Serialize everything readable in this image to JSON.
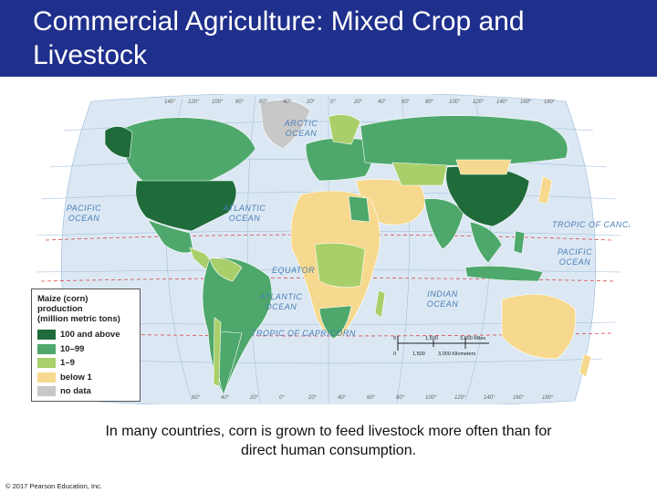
{
  "title": "Commercial Agriculture: Mixed Crop and Livestock",
  "map": {
    "ocean_labels": [
      {
        "id": "arctic",
        "lines": [
          "ARCTIC",
          "OCEAN"
        ]
      },
      {
        "id": "pacific-west",
        "lines": [
          "PACIFIC",
          "OCEAN"
        ]
      },
      {
        "id": "atlantic-north",
        "lines": [
          "ATLANTIC",
          "OCEAN"
        ]
      },
      {
        "id": "pacific-east",
        "lines": [
          "PACIFIC",
          "OCEAN"
        ]
      },
      {
        "id": "atlantic-south",
        "lines": [
          "ATLANTIC",
          "OCEAN"
        ]
      },
      {
        "id": "indian",
        "lines": [
          "INDIAN",
          "OCEAN"
        ]
      }
    ],
    "line_labels": {
      "equator": "EQUATOR",
      "tropic_cancer": "TROPIC OF CANCER",
      "tropic_capricorn": "TROPIC OF CAPRICORN"
    },
    "top_longitudes": [
      "140°",
      "120°",
      "100°",
      "80°",
      "60°",
      "40°",
      "20°",
      "0°",
      "20°",
      "40°",
      "60°",
      "80°",
      "100°",
      "120°",
      "140°",
      "160°",
      "180°"
    ],
    "bottom_longitudes": [
      "60°",
      "40°",
      "20°",
      "0°",
      "20°",
      "40°",
      "60°",
      "80°",
      "100°",
      "120°",
      "140°",
      "160°",
      "180°"
    ],
    "latitudes_left": [
      "40°",
      "20°",
      "160°",
      "140°",
      "120°",
      "100°",
      "0°",
      "20°",
      "40°"
    ],
    "latitudes_right": [
      "80°",
      "60°",
      "40°",
      "20°",
      "0°",
      "20°",
      "40°"
    ]
  },
  "legend": {
    "title": "Maize (corn) production\n(million metric tons)",
    "items": [
      {
        "label": "100 and above",
        "color": "#1f6b3a"
      },
      {
        "label": "10–99",
        "color": "#4ea86b"
      },
      {
        "label": "1–9",
        "color": "#a9cf6a"
      },
      {
        "label": "below 1",
        "color": "#f6d98e"
      },
      {
        "label": "no data",
        "color": "#c8c8c8"
      }
    ]
  },
  "scale": {
    "miles_mid": "1,500",
    "miles_end": "3,000 Miles",
    "km_zero": "0",
    "km_mid": "1,500",
    "km_end": "3,000 Kilometers",
    "zero": "0"
  },
  "caption": "In many countries, corn is grown to feed livestock more often than for direct human consumption.",
  "copyright": "© 2017 Pearson Education, Inc.",
  "colors": {
    "title_bar": "#1f2f8c",
    "ocean": "#dbe8f4",
    "grid": "#7fa6cc"
  }
}
